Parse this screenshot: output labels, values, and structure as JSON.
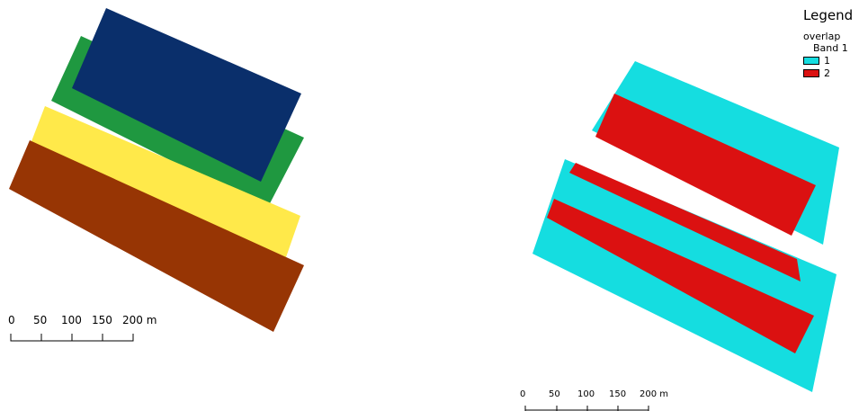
{
  "colors": {
    "strip_blue": "#0a2f6b",
    "strip_green": "#1f9840",
    "strip_yellow": "#ffe94a",
    "strip_brown": "#973504",
    "overlap_1": "#15dde0",
    "overlap_2": "#db1111"
  },
  "left_scalebar": {
    "labels": [
      "0",
      "50",
      "100",
      "150",
      "200 m"
    ]
  },
  "right_scalebar": {
    "labels": [
      "0",
      "50",
      "100",
      "150",
      "200 m"
    ]
  },
  "legend": {
    "title": "Legend",
    "layer": "overlap",
    "band": "Band 1",
    "items": [
      {
        "label": "1",
        "color": "#15dde0"
      },
      {
        "label": "2",
        "color": "#db1111"
      }
    ]
  }
}
